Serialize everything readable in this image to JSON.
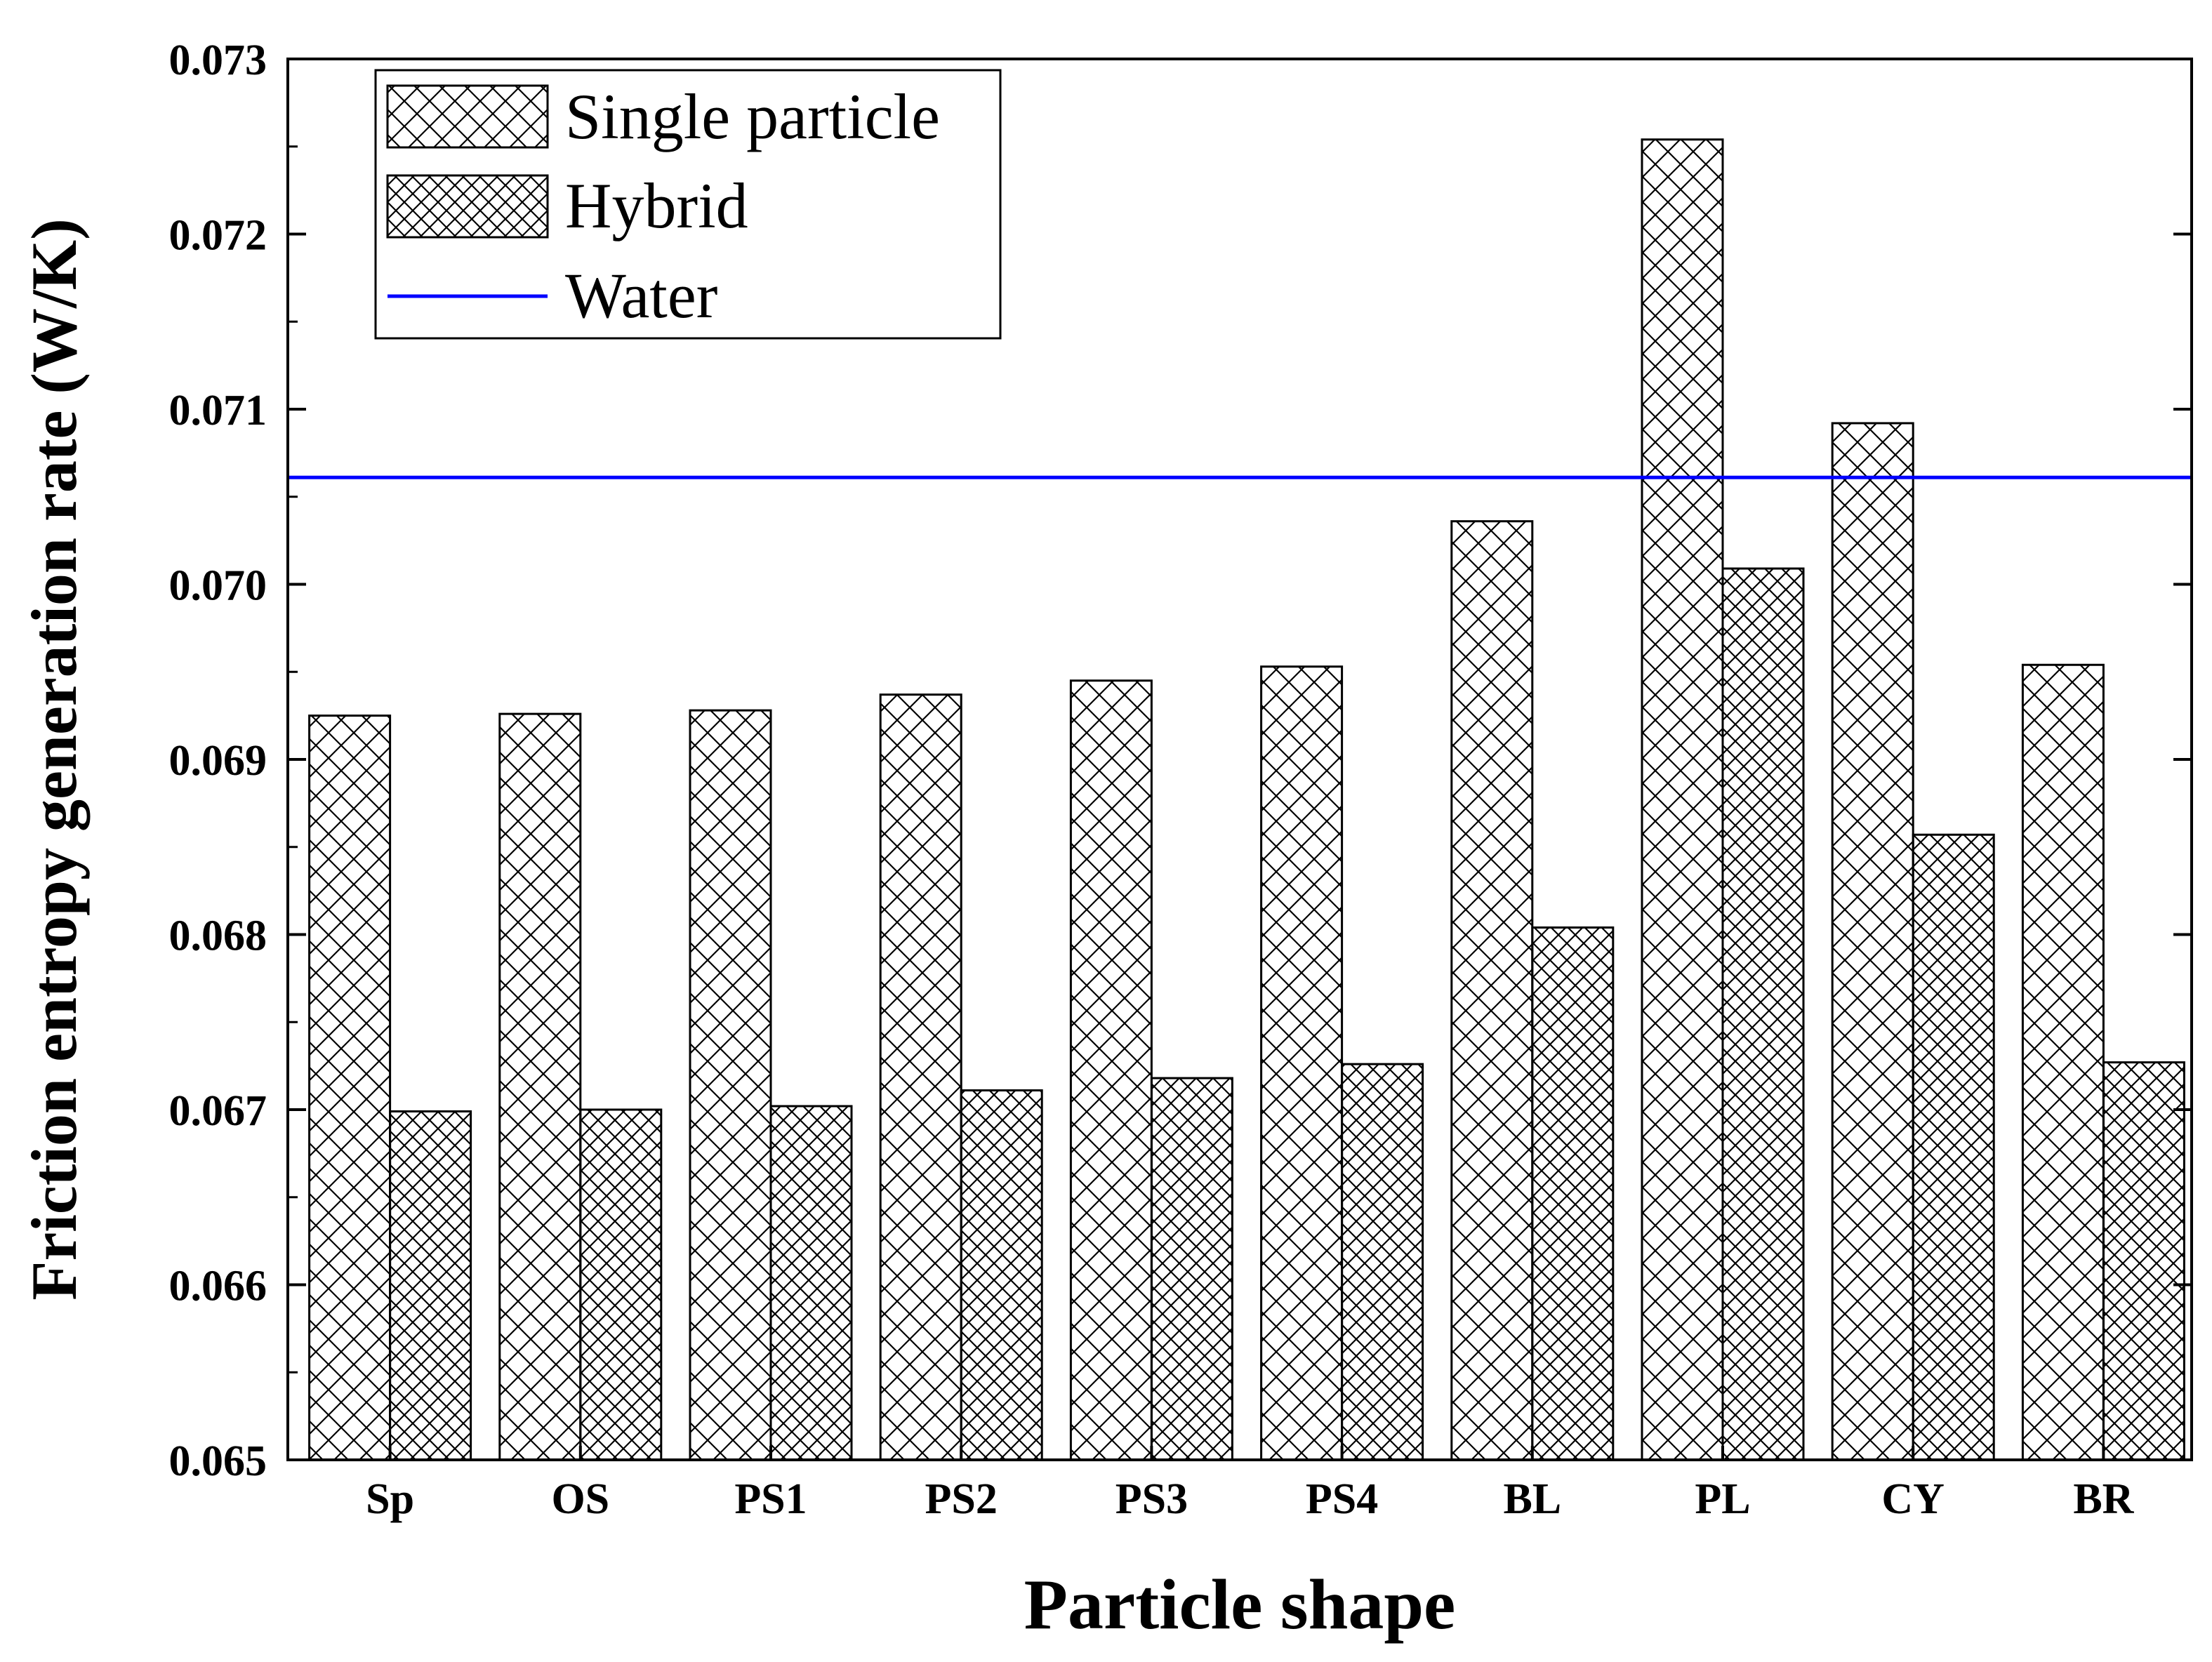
{
  "chart_data": {
    "type": "bar",
    "title": "",
    "xlabel": "Particle shape",
    "ylabel": "Friction entropy generation rate (W/K)",
    "categories": [
      "Sp",
      "OS",
      "PS1",
      "PS2",
      "PS3",
      "PS4",
      "BL",
      "PL",
      "CY",
      "BR"
    ],
    "series": [
      {
        "name": "Single particle",
        "pattern": "coarse-crosshatch",
        "values": [
          0.06925,
          0.06926,
          0.06928,
          0.06937,
          0.06945,
          0.06953,
          0.07036,
          0.07254,
          0.07092,
          0.06954
        ]
      },
      {
        "name": "Hybrid",
        "pattern": "fine-crosshatch",
        "values": [
          0.06699,
          0.067,
          0.06702,
          0.06711,
          0.06718,
          0.06726,
          0.06804,
          0.07009,
          0.06857,
          0.06727
        ]
      }
    ],
    "reference_lines": [
      {
        "name": "Water",
        "value": 0.07061,
        "color": "#0000ff"
      }
    ],
    "ylim": [
      0.065,
      0.073
    ],
    "yticks": [
      "0.065",
      "0.066",
      "0.067",
      "0.068",
      "0.069",
      "0.070",
      "0.071",
      "0.072",
      "0.073"
    ],
    "legend": {
      "position": "top-left",
      "entries": [
        "Single particle",
        "Hybrid",
        "Water"
      ]
    },
    "grid": false
  }
}
